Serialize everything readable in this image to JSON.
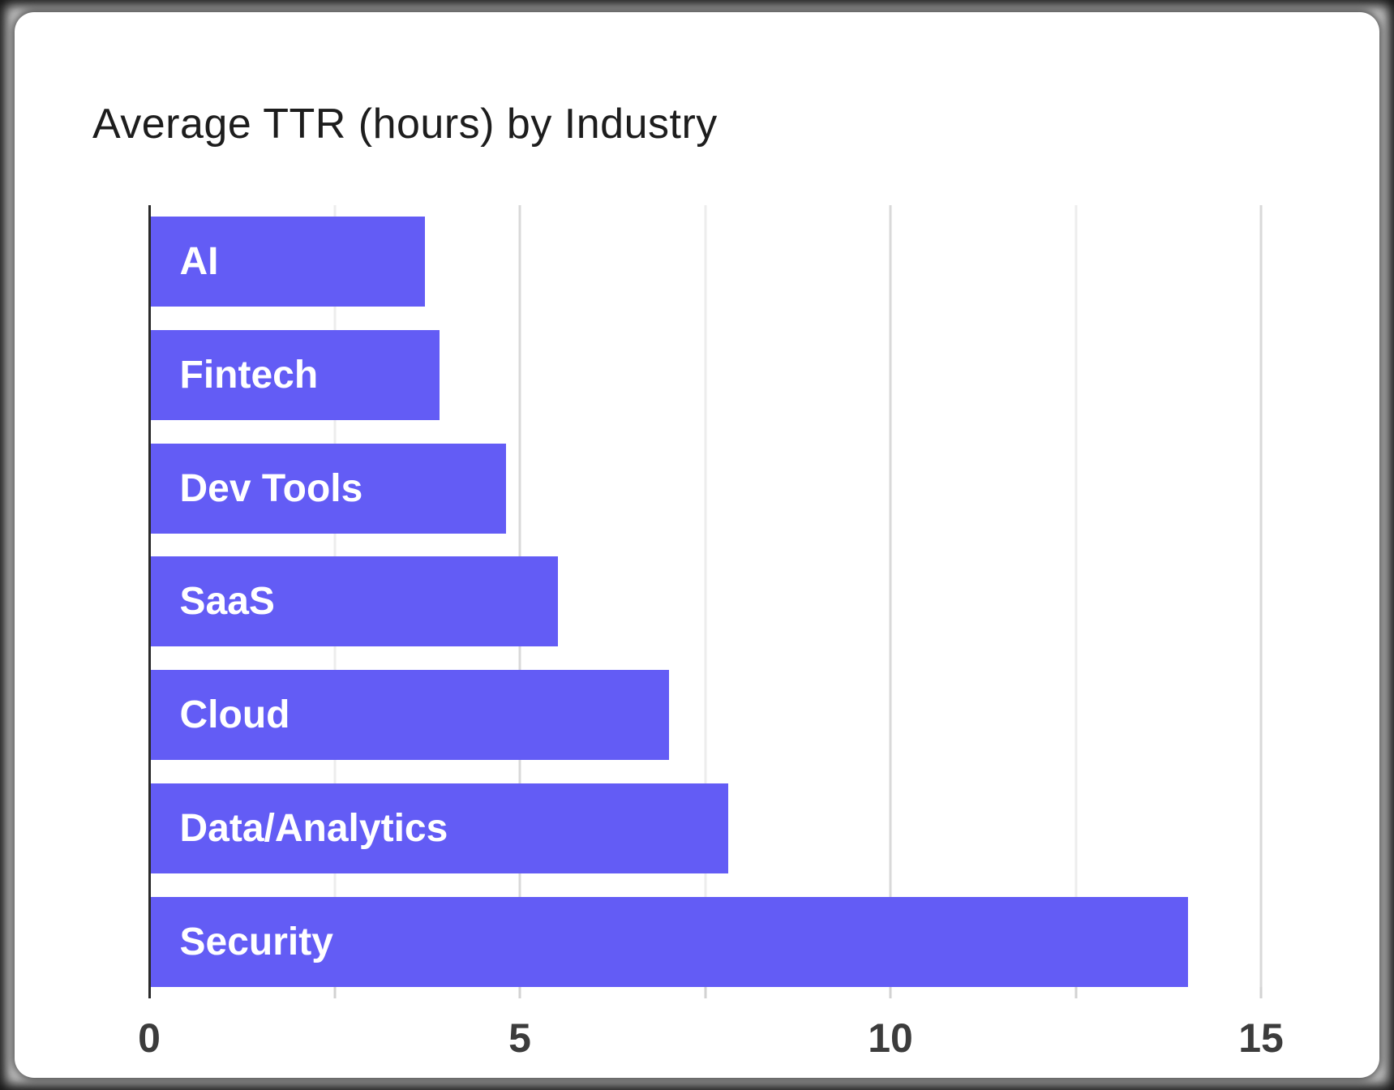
{
  "chart_data": {
    "type": "bar",
    "orientation": "horizontal",
    "title": "Average TTR (hours) by Industry",
    "categories": [
      "AI",
      "Fintech",
      "Dev Tools",
      "SaaS",
      "Cloud",
      "Data/Analytics",
      "Security"
    ],
    "values": [
      3.7,
      3.9,
      4.8,
      5.5,
      7.0,
      7.8,
      14.0
    ],
    "xlabel": "",
    "ylabel": "",
    "xlim": [
      0,
      15
    ],
    "x_tick_labels": [
      "0",
      "5",
      "10",
      "15"
    ],
    "x_major_ticks": [
      0,
      5,
      10,
      15
    ],
    "x_minor_ticks": [
      2.5,
      7.5,
      12.5
    ],
    "grid": "vertical",
    "legend": "none",
    "bar_color": "#635CF5",
    "bar_label_color": "#ffffff",
    "axis_line_color": "#2a2a2a",
    "major_grid_color": "#d9d9d9",
    "minor_grid_color": "#ededed",
    "tick_stub_color": "#d2d2d2",
    "tick_label_color": "#3c3c3c",
    "title_color": "#1d1d1d"
  }
}
